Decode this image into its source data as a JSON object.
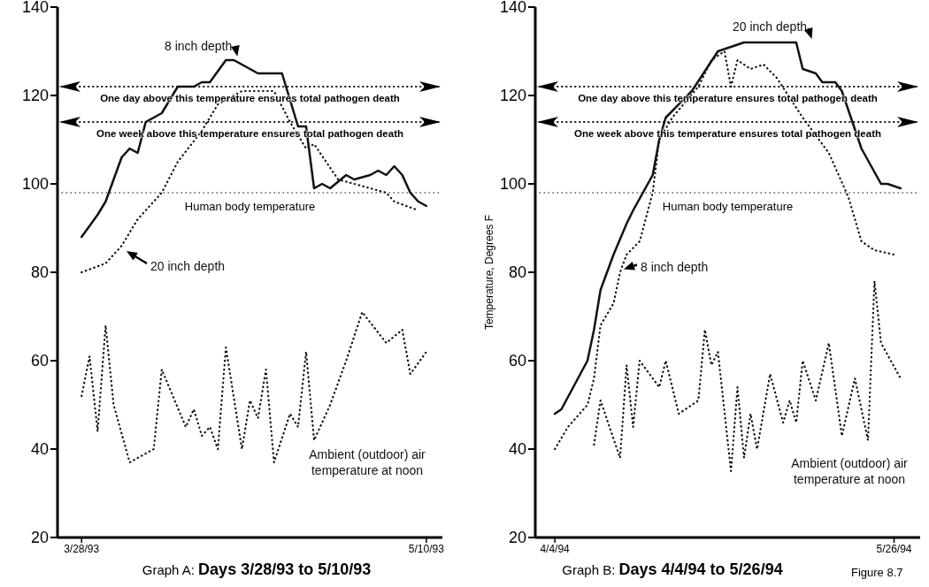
{
  "chart_data": [
    {
      "type": "line",
      "title": "Graph A: Days 3/28/93 to 5/10/93",
      "xlim": [
        "1993-03-25",
        "1993-05-12"
      ],
      "xticks": [
        {
          "value": "1993-03-28",
          "label": "3/28/93"
        },
        {
          "value": "1993-05-10",
          "label": "5/10/93"
        }
      ],
      "ylim": [
        20,
        140
      ],
      "yticks": [
        20,
        40,
        60,
        80,
        100,
        120,
        140
      ],
      "series": [
        {
          "name": "8 inch depth",
          "color": "#111111",
          "line_style": "solid",
          "x": [
            "1993-03-28",
            "1993-03-30",
            "1993-03-31",
            "1993-04-02",
            "1993-04-03",
            "1993-04-04",
            "1993-04-05",
            "1993-04-07",
            "1993-04-09",
            "1993-04-11",
            "1993-04-12",
            "1993-04-13",
            "1993-04-15",
            "1993-04-16",
            "1993-04-19",
            "1993-04-20",
            "1993-04-22",
            "1993-04-24",
            "1993-04-25",
            "1993-04-26",
            "1993-04-27",
            "1993-04-28",
            "1993-04-30",
            "1993-05-01",
            "1993-05-03",
            "1993-05-04",
            "1993-05-05",
            "1993-05-06",
            "1993-05-07",
            "1993-05-08",
            "1993-05-09",
            "1993-05-10"
          ],
          "values": [
            88,
            93,
            96,
            106,
            108,
            107,
            114,
            116,
            122,
            122,
            123,
            123,
            128,
            128,
            125,
            125,
            125,
            113,
            113,
            99,
            100,
            99,
            102,
            101,
            102,
            103,
            102,
            104,
            102,
            98,
            96,
            95
          ]
        },
        {
          "name": "20 inch depth",
          "color": "#111111",
          "line_style": "dotted",
          "x": [
            "1993-03-28",
            "1993-03-31",
            "1993-04-02",
            "1993-04-04",
            "1993-04-07",
            "1993-04-09",
            "1993-04-12",
            "1993-04-14",
            "1993-04-17",
            "1993-04-19",
            "1993-04-21",
            "1993-04-23",
            "1993-04-25",
            "1993-04-26",
            "1993-04-29",
            "1993-05-03",
            "1993-05-05",
            "1993-05-06",
            "1993-05-09"
          ],
          "values": [
            80,
            82,
            86,
            92,
            98,
            105,
            112,
            118,
            121,
            121,
            121,
            114,
            108,
            109,
            101,
            99,
            98,
            96,
            94
          ]
        },
        {
          "name": "Ambient (outdoor) air temperature at noon",
          "color": "#111111",
          "line_style": "dotted",
          "x": [
            "1993-03-28",
            "1993-03-29",
            "1993-03-30",
            "1993-03-31",
            "1993-04-01",
            "1993-04-03",
            "1993-04-06",
            "1993-04-07",
            "1993-04-10",
            "1993-04-11",
            "1993-04-12",
            "1993-04-13",
            "1993-04-14",
            "1993-04-15",
            "1993-04-17",
            "1993-04-18",
            "1993-04-19",
            "1993-04-20",
            "1993-04-21",
            "1993-04-23",
            "1993-04-24",
            "1993-04-25",
            "1993-04-26",
            "1993-04-28",
            "1993-04-30",
            "1993-05-02",
            "1993-05-05",
            "1993-05-07",
            "1993-05-08",
            "1993-05-10"
          ],
          "values": [
            52,
            61,
            44,
            68,
            50,
            37,
            40,
            58,
            45,
            49,
            43,
            45,
            40,
            63,
            40,
            51,
            47,
            58,
            37,
            48,
            45,
            62,
            42,
            50,
            60,
            71,
            64,
            67,
            57,
            62
          ]
        }
      ],
      "ref_lines": [
        {
          "axis": "y",
          "value": 122,
          "label": "One day above this temperature ensures total pathogen death",
          "color": "#111111",
          "line_style": "dotted"
        },
        {
          "axis": "y",
          "value": 114,
          "label": "One week above this temperature ensures total pathogen death",
          "color": "#111111",
          "line_style": "dotted"
        },
        {
          "axis": "y",
          "value": 98,
          "label": "Human body temperature",
          "color": "#555555",
          "line_style": "dotted"
        }
      ]
    },
    {
      "type": "line",
      "title": "Graph B: Days 4/4/94 to 5/26/94",
      "ylabel": "Temperature, Degrees F",
      "xlim": [
        "1994-04-01",
        "1994-05-30"
      ],
      "xticks": [
        {
          "value": "1994-04-04",
          "label": "4/4/94"
        },
        {
          "value": "1994-05-26",
          "label": "5/26/94"
        }
      ],
      "ylim": [
        20,
        140
      ],
      "yticks": [
        20,
        40,
        60,
        80,
        100,
        120,
        140
      ],
      "series": [
        {
          "name": "20 inch depth",
          "color": "#111111",
          "line_style": "solid",
          "x": [
            "1994-04-04",
            "1994-04-05",
            "1994-04-09",
            "1994-04-10",
            "1994-04-11",
            "1994-04-13",
            "1994-04-15",
            "1994-04-16",
            "1994-04-19",
            "1994-04-20",
            "1994-04-21",
            "1994-04-25",
            "1994-04-29",
            "1994-05-03",
            "1994-05-11",
            "1994-05-12",
            "1994-05-14",
            "1994-05-15",
            "1994-05-17",
            "1994-05-18",
            "1994-05-21",
            "1994-05-24",
            "1994-05-25",
            "1994-05-27"
          ],
          "values": [
            48,
            49,
            60,
            67,
            76,
            84,
            91,
            94,
            102,
            110,
            115,
            121,
            130,
            132,
            132,
            126,
            125,
            123,
            123,
            121,
            108,
            100,
            100,
            99
          ]
        },
        {
          "name": "8 inch depth",
          "color": "#111111",
          "line_style": "dotted",
          "x": [
            "1994-04-04",
            "1994-04-06",
            "1994-04-09",
            "1994-04-10",
            "1994-04-11",
            "1994-04-13",
            "1994-04-14",
            "1994-04-15",
            "1994-04-17",
            "1994-04-19",
            "1994-04-20",
            "1994-04-22",
            "1994-04-26",
            "1994-04-28",
            "1994-04-30",
            "1994-05-01",
            "1994-05-02",
            "1994-05-04",
            "1994-05-06",
            "1994-05-08",
            "1994-05-12",
            "1994-05-16",
            "1994-05-19",
            "1994-05-21",
            "1994-05-23",
            "1994-05-26"
          ],
          "values": [
            40,
            45,
            50,
            56,
            68,
            73,
            80,
            84,
            87,
            98,
            110,
            115,
            122,
            128,
            130,
            122,
            128,
            126,
            127,
            124,
            115,
            107,
            97,
            87,
            85,
            84
          ]
        },
        {
          "name": "Ambient (outdoor) air temperature at noon",
          "color": "#111111",
          "line_style": "dotted",
          "x": [
            "1994-04-10",
            "1994-04-11",
            "1994-04-14",
            "1994-04-15",
            "1994-04-16",
            "1994-04-17",
            "1994-04-20",
            "1994-04-21",
            "1994-04-23",
            "1994-04-26",
            "1994-04-27",
            "1994-04-28",
            "1994-04-29",
            "1994-05-01",
            "1994-05-02",
            "1994-05-03",
            "1994-05-04",
            "1994-05-05",
            "1994-05-07",
            "1994-05-09",
            "1994-05-10",
            "1994-05-11",
            "1994-05-12",
            "1994-05-14",
            "1994-05-16",
            "1994-05-18",
            "1994-05-20",
            "1994-05-22",
            "1994-05-23",
            "1994-05-24",
            "1994-05-27"
          ],
          "values": [
            41,
            51,
            38,
            59,
            45,
            60,
            54,
            60,
            48,
            51,
            67,
            59,
            62,
            35,
            54,
            38,
            48,
            40,
            57,
            46,
            51,
            46,
            60,
            51,
            64,
            43,
            56,
            42,
            78,
            64,
            56
          ]
        }
      ],
      "ref_lines": [
        {
          "axis": "y",
          "value": 122,
          "label": "One day above this temperature ensures total pathogen death",
          "color": "#111111",
          "line_style": "dotted"
        },
        {
          "axis": "y",
          "value": 114,
          "label": "One week above this temperature ensures total pathogen death",
          "color": "#111111",
          "line_style": "dotted"
        },
        {
          "axis": "y",
          "value": 98,
          "label": "Human body temperature",
          "color": "#555555",
          "line_style": "dotted"
        }
      ],
      "annotations": [
        "Figure 8.7"
      ]
    }
  ]
}
